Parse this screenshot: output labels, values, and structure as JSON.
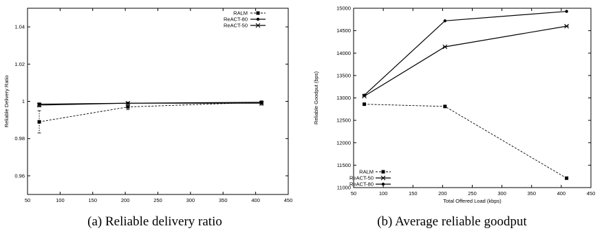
{
  "chart_data": [
    {
      "type": "line",
      "caption": "(a) Reliable delivery ratio",
      "xlabel": "",
      "ylabel": "Reliable Delivery Ratio",
      "xlim": [
        50,
        450
      ],
      "ylim": [
        0.95,
        1.05
      ],
      "xticks": [
        "50",
        "100",
        "150",
        "200",
        "250",
        "300",
        "350",
        "400",
        "450"
      ],
      "yticks": [
        "0.96",
        "0.98",
        "1",
        "1.02",
        "1.04"
      ],
      "ytick_values": [
        0.96,
        0.98,
        1.0,
        1.02,
        1.04
      ],
      "xtick_values": [
        50,
        100,
        150,
        200,
        250,
        300,
        350,
        400,
        450
      ],
      "grid": false,
      "legend_position": "top-right",
      "series": [
        {
          "name": "RALM",
          "marker": "square",
          "dash": "dashed",
          "x": [
            68,
            204,
            409
          ],
          "y": [
            0.989,
            0.997,
            0.9995
          ],
          "err": [
            0.006,
            0.0015,
            0.0005
          ]
        },
        {
          "name": "ReACT-80",
          "marker": "circle",
          "dash": "solid",
          "x": [
            68,
            204,
            409
          ],
          "y": [
            0.9985,
            0.999,
            0.9995
          ],
          "err": [
            0.0007,
            0.0005,
            0.0003
          ]
        },
        {
          "name": "ReACT-50",
          "marker": "star",
          "dash": "solid",
          "x": [
            68,
            204,
            409
          ],
          "y": [
            0.998,
            0.999,
            0.999
          ],
          "err": [
            0.001,
            0.0005,
            0.001
          ]
        }
      ]
    },
    {
      "type": "line",
      "caption": "(b) Average reliable goodput",
      "xlabel": "Total Offered Load (kbps)",
      "ylabel": "Reliable Goodput (bps)",
      "xlim": [
        50,
        450
      ],
      "ylim": [
        11000,
        15000
      ],
      "xticks": [
        "50",
        "100",
        "150",
        "200",
        "250",
        "300",
        "350",
        "400",
        "450"
      ],
      "yticks": [
        "11000",
        "11500",
        "12000",
        "12500",
        "13000",
        "13500",
        "14000",
        "14500",
        "15000"
      ],
      "ytick_values": [
        11000,
        11500,
        12000,
        12500,
        13000,
        13500,
        14000,
        14500,
        15000
      ],
      "xtick_values": [
        50,
        100,
        150,
        200,
        250,
        300,
        350,
        400,
        450
      ],
      "grid": false,
      "legend_position": "bottom-left",
      "series": [
        {
          "name": "RALM",
          "marker": "square",
          "dash": "dashed",
          "x": [
            68,
            204,
            409
          ],
          "y": [
            12860,
            12810,
            11210
          ]
        },
        {
          "name": "ReACT-50",
          "marker": "star",
          "dash": "solid",
          "x": [
            68,
            204,
            409
          ],
          "y": [
            13040,
            14140,
            14600
          ]
        },
        {
          "name": "ReACT-80",
          "marker": "circle",
          "dash": "solid",
          "x": [
            68,
            204,
            409
          ],
          "y": [
            13060,
            14720,
            14930
          ]
        }
      ]
    }
  ]
}
